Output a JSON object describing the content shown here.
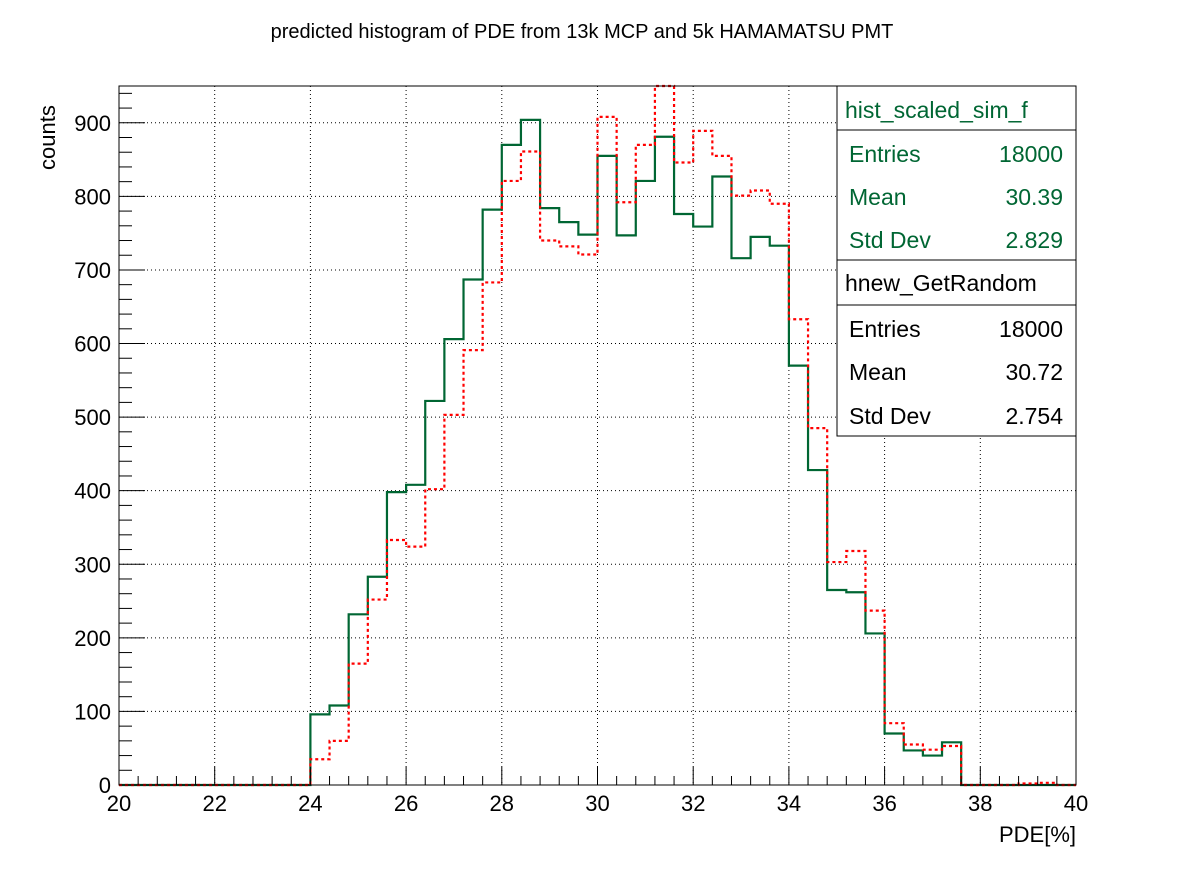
{
  "chart_data": {
    "type": "histogram",
    "title": "predicted histogram of PDE from 13k MCP and 5k HAMAMATSU PMT",
    "xlabel": "PDE[%]",
    "ylabel": "counts",
    "xlim": [
      20,
      40
    ],
    "ylim": [
      0,
      950
    ],
    "bin_width": 0.4,
    "grid": true,
    "x_ticks": [
      "20",
      "22",
      "24",
      "26",
      "28",
      "30",
      "32",
      "34",
      "36",
      "38",
      "40"
    ],
    "y_ticks": [
      "0",
      "100",
      "200",
      "300",
      "400",
      "500",
      "600",
      "700",
      "800",
      "900"
    ],
    "series": [
      {
        "name": "hist_scaled_sim_f",
        "color": "#006633",
        "style": "solid",
        "values": [
          0,
          0,
          0,
          0,
          0,
          0,
          0,
          0,
          0,
          0,
          96,
          108,
          232,
          283,
          398,
          408,
          522,
          606,
          687,
          782,
          870,
          904,
          784,
          765,
          748,
          855,
          747,
          821,
          881,
          776,
          759,
          827,
          716,
          745,
          733,
          570,
          428,
          265,
          262,
          206,
          70,
          47,
          40,
          58,
          0,
          0,
          0,
          0,
          0,
          0
        ],
        "stats": {
          "entries": "18000",
          "mean": "30.39",
          "std_dev": "2.829"
        }
      },
      {
        "name": "hnew_GetRandom",
        "color": "#ff0000",
        "style": "dotted",
        "values": [
          0,
          0,
          0,
          0,
          0,
          0,
          0,
          0,
          0,
          0,
          35,
          60,
          165,
          252,
          333,
          324,
          402,
          503,
          591,
          683,
          821,
          861,
          740,
          732,
          721,
          908,
          792,
          870,
          1000,
          846,
          889,
          855,
          801,
          808,
          790,
          633,
          485,
          303,
          318,
          237,
          84,
          55,
          48,
          53,
          0,
          0,
          0,
          2,
          3,
          0
        ],
        "stats": {
          "entries": "18000",
          "mean": "30.72",
          "std_dev": "2.754"
        }
      }
    ]
  },
  "stats_box": {
    "labels": {
      "entries": "Entries",
      "mean": "Mean",
      "std_dev": "Std Dev"
    }
  }
}
